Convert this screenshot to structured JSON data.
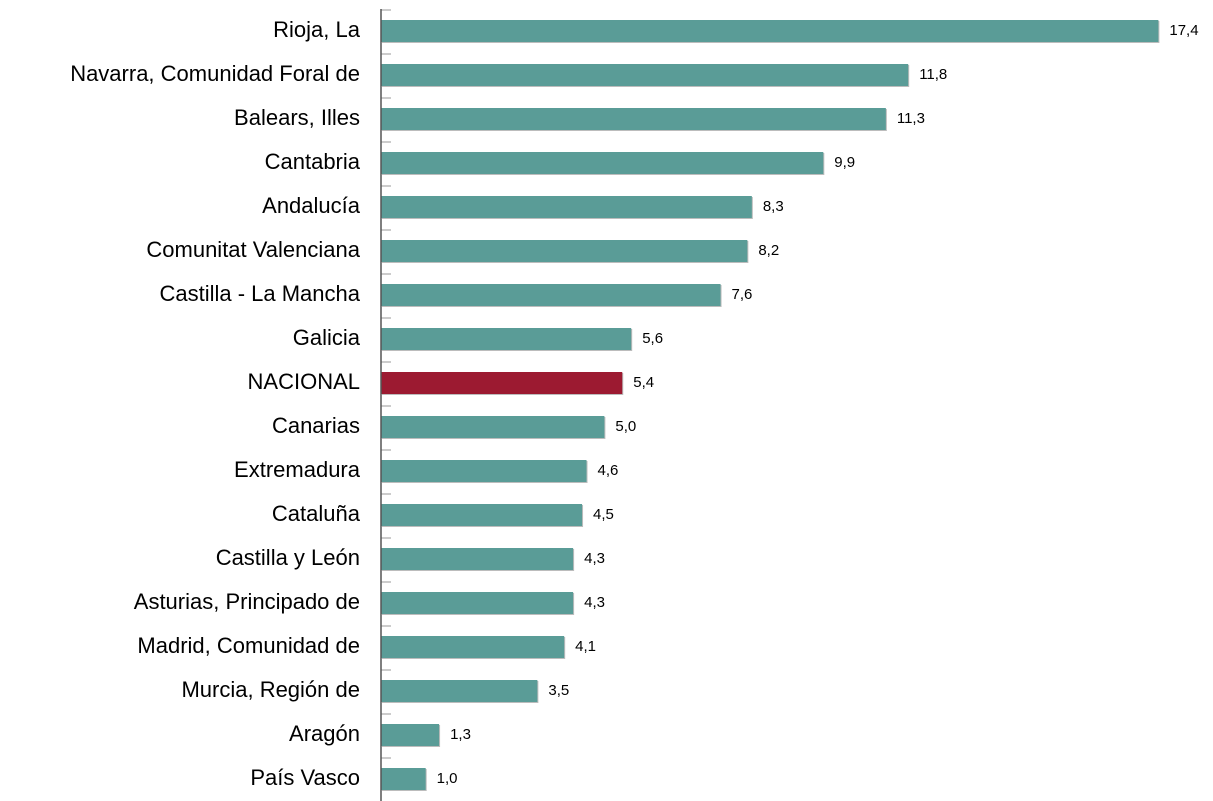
{
  "chart_data": {
    "type": "barh",
    "categories": [
      "Rioja, La",
      "Navarra, Comunidad Foral de",
      "Balears, Illes",
      "Cantabria",
      "Andalucía",
      "Comunitat Valenciana",
      "Castilla - La Mancha",
      "Galicia",
      "NACIONAL",
      "Canarias",
      "Extremadura",
      "Cataluña",
      "Castilla y León",
      "Asturias, Principado de",
      "Madrid, Comunidad de",
      "Murcia, Región de",
      "Aragón",
      "País Vasco"
    ],
    "values": [
      17.4,
      11.8,
      11.3,
      9.9,
      8.3,
      8.2,
      7.6,
      5.6,
      5.4,
      5.0,
      4.6,
      4.5,
      4.3,
      4.3,
      4.1,
      3.5,
      1.3,
      1.0
    ],
    "value_labels": [
      "17,4",
      "11,8",
      "11,3",
      "9,9",
      "8,3",
      "8,2",
      "7,6",
      "5,6",
      "5,4",
      "5,0",
      "4,6",
      "4,5",
      "4,3",
      "4,3",
      "4,1",
      "3,5",
      "1,3",
      "1,0"
    ],
    "colors": [
      "#5a9c97",
      "#5a9c97",
      "#5a9c97",
      "#5a9c97",
      "#5a9c97",
      "#5a9c97",
      "#5a9c97",
      "#5a9c97",
      "#9c1a31",
      "#5a9c97",
      "#5a9c97",
      "#5a9c97",
      "#5a9c97",
      "#5a9c97",
      "#5a9c97",
      "#5a9c97",
      "#5a9c97",
      "#5a9c97"
    ],
    "xlim": [
      0,
      18.6
    ]
  }
}
